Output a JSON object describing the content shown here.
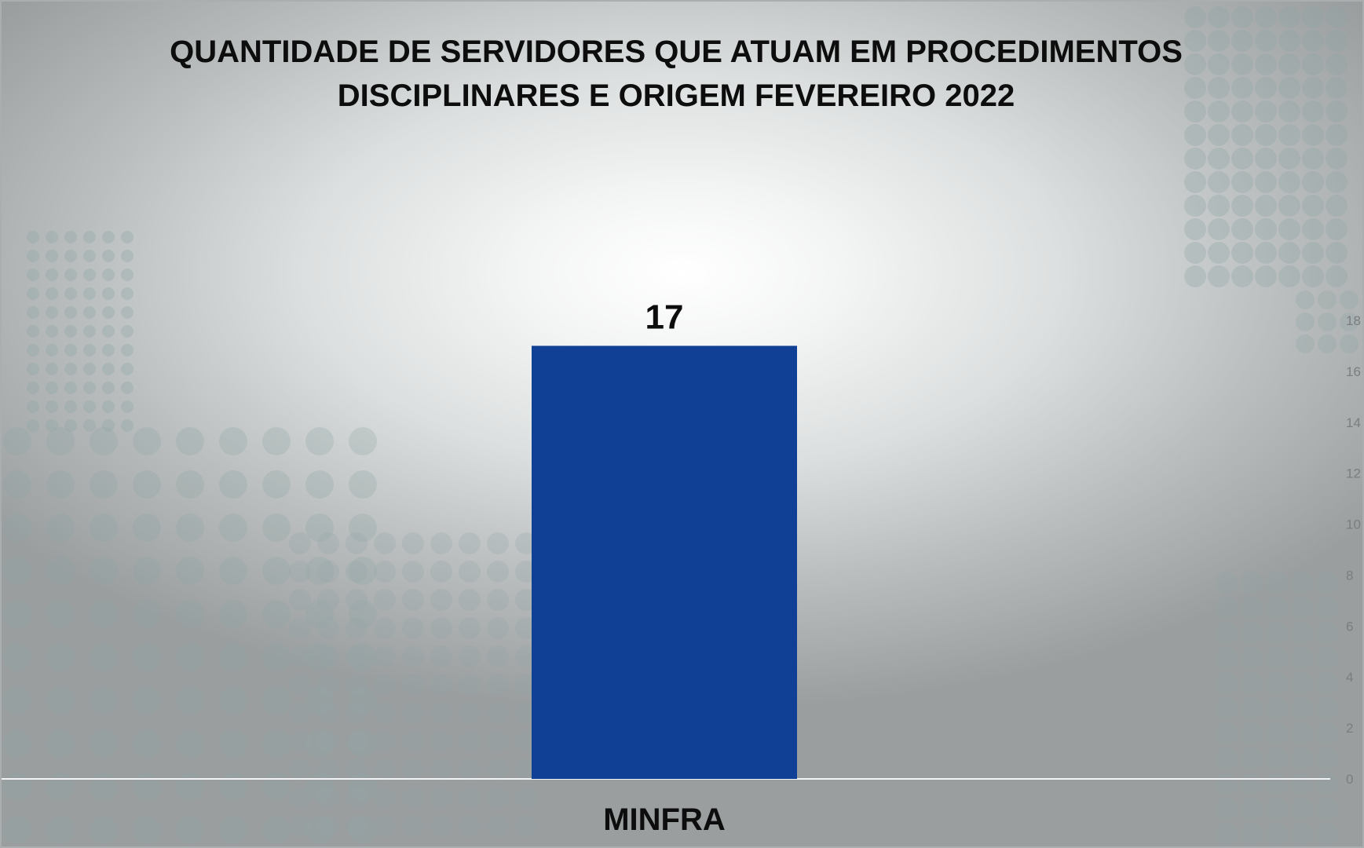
{
  "chart_data": {
    "type": "bar",
    "title_lines": [
      "QUANTIDADE DE SERVIDORES QUE ATUAM EM PROCEDIMENTOS",
      "DISCIPLINARES E ORIGEM FEVEREIRO 2022"
    ],
    "categories": [
      "MINFRA"
    ],
    "values": [
      17
    ],
    "data_labels": [
      "17"
    ],
    "xlabel": "",
    "ylabel": "",
    "ylim": [
      0,
      18
    ],
    "y_ticks": [
      0,
      2,
      4,
      6,
      8,
      10,
      12,
      14,
      16,
      18
    ],
    "y_axis_side": "right",
    "grid": false,
    "legend": "none",
    "colors": {
      "bar": "#103f96",
      "axis_line": "#f2f2f2",
      "tick_text": "#7a7e80",
      "dot_pattern": "#8fa5a6"
    }
  }
}
